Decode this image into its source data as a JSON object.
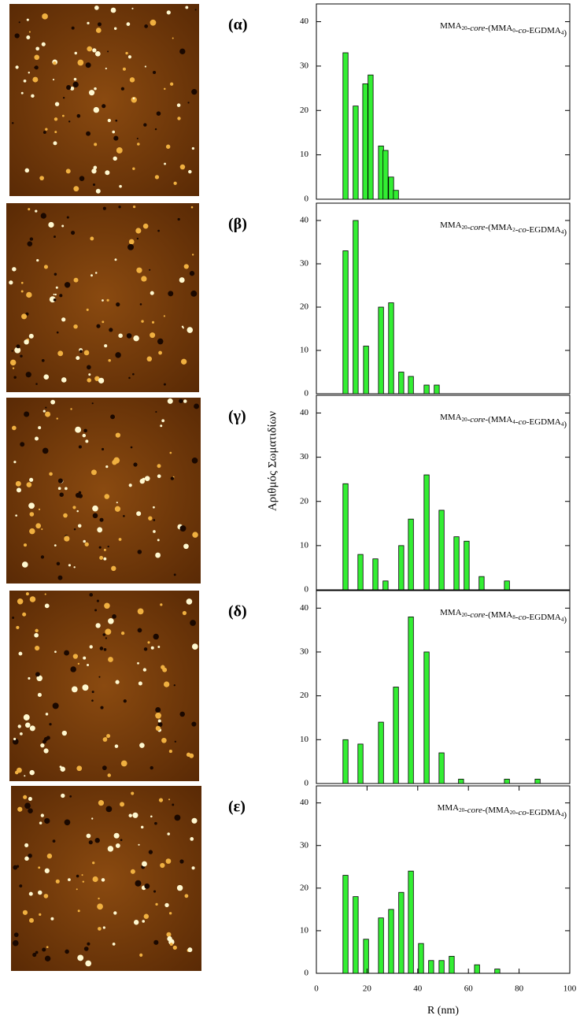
{
  "chart_data": [
    {
      "type": "bar",
      "label": "(α)",
      "title": "MMA20-core-(MMA0-co-EGDMA4)",
      "color": "#33ee33",
      "x": [
        11.5,
        15.5,
        19.3,
        21.4,
        25.5,
        27.3,
        29.5,
        31.4
      ],
      "values": [
        33,
        21,
        26,
        28,
        12,
        11,
        5,
        2
      ],
      "xlim": [
        0,
        100
      ],
      "ylim": [
        0,
        44
      ],
      "yticks": [
        0,
        10,
        20,
        30,
        40
      ]
    },
    {
      "type": "bar",
      "label": "(β)",
      "title": "MMA20-core-(MMA2-co-EGDMA4)",
      "color": "#33ee33",
      "x": [
        11.5,
        15.5,
        19.6,
        25.5,
        29.5,
        33.5,
        37.3,
        43.5,
        47.5
      ],
      "values": [
        33,
        40,
        11,
        20,
        21,
        5,
        4,
        2,
        2
      ],
      "xlim": [
        0,
        100
      ],
      "ylim": [
        0,
        44
      ],
      "yticks": [
        0,
        10,
        20,
        30,
        40
      ]
    },
    {
      "type": "bar",
      "label": "(γ)",
      "title": "MMA20-core-(MMA4-co-EGDMA4)",
      "color": "#33ee33",
      "x": [
        11.5,
        17.4,
        23.3,
        27.3,
        33.5,
        37.3,
        43.5,
        49.4,
        55.3,
        59.3,
        65.2,
        75.2
      ],
      "values": [
        24,
        8,
        7,
        2,
        10,
        16,
        26,
        18,
        12,
        11,
        3,
        2
      ],
      "xlim": [
        0,
        100
      ],
      "ylim": [
        0,
        44
      ],
      "yticks": [
        0,
        10,
        20,
        30,
        40
      ],
      "y_label": "Αριθμός Σωματιδίων"
    },
    {
      "type": "bar",
      "label": "(δ)",
      "title": "MMA20-core-(MMA8-co-EGDMA4)",
      "color": "#33ee33",
      "x": [
        11.5,
        17.4,
        25.5,
        31.4,
        37.3,
        43.5,
        49.4,
        57.1,
        75.2,
        87.3
      ],
      "values": [
        10,
        9,
        14,
        22,
        38,
        30,
        7,
        1,
        1,
        1
      ],
      "xlim": [
        0,
        100
      ],
      "ylim": [
        0,
        44
      ],
      "yticks": [
        0,
        10,
        20,
        30,
        40
      ]
    },
    {
      "type": "bar",
      "label": "(ε)",
      "title": "MMA20-core-(MMA20-co-EGDMA4)",
      "color": "#33ee33",
      "x": [
        11.5,
        15.5,
        19.6,
        25.5,
        29.5,
        33.5,
        37.3,
        41.3,
        45.3,
        49.4,
        53.4,
        63.4,
        71.4
      ],
      "values": [
        23,
        18,
        8,
        13,
        15,
        19,
        24,
        7,
        3,
        3,
        4,
        2,
        1
      ],
      "xlim": [
        0,
        100
      ],
      "ylim": [
        0,
        44
      ],
      "yticks": [
        0,
        10,
        20,
        30,
        40
      ],
      "xticks": [
        0,
        20,
        40,
        60,
        80,
        100
      ],
      "x_label": "R (nm)"
    }
  ]
}
